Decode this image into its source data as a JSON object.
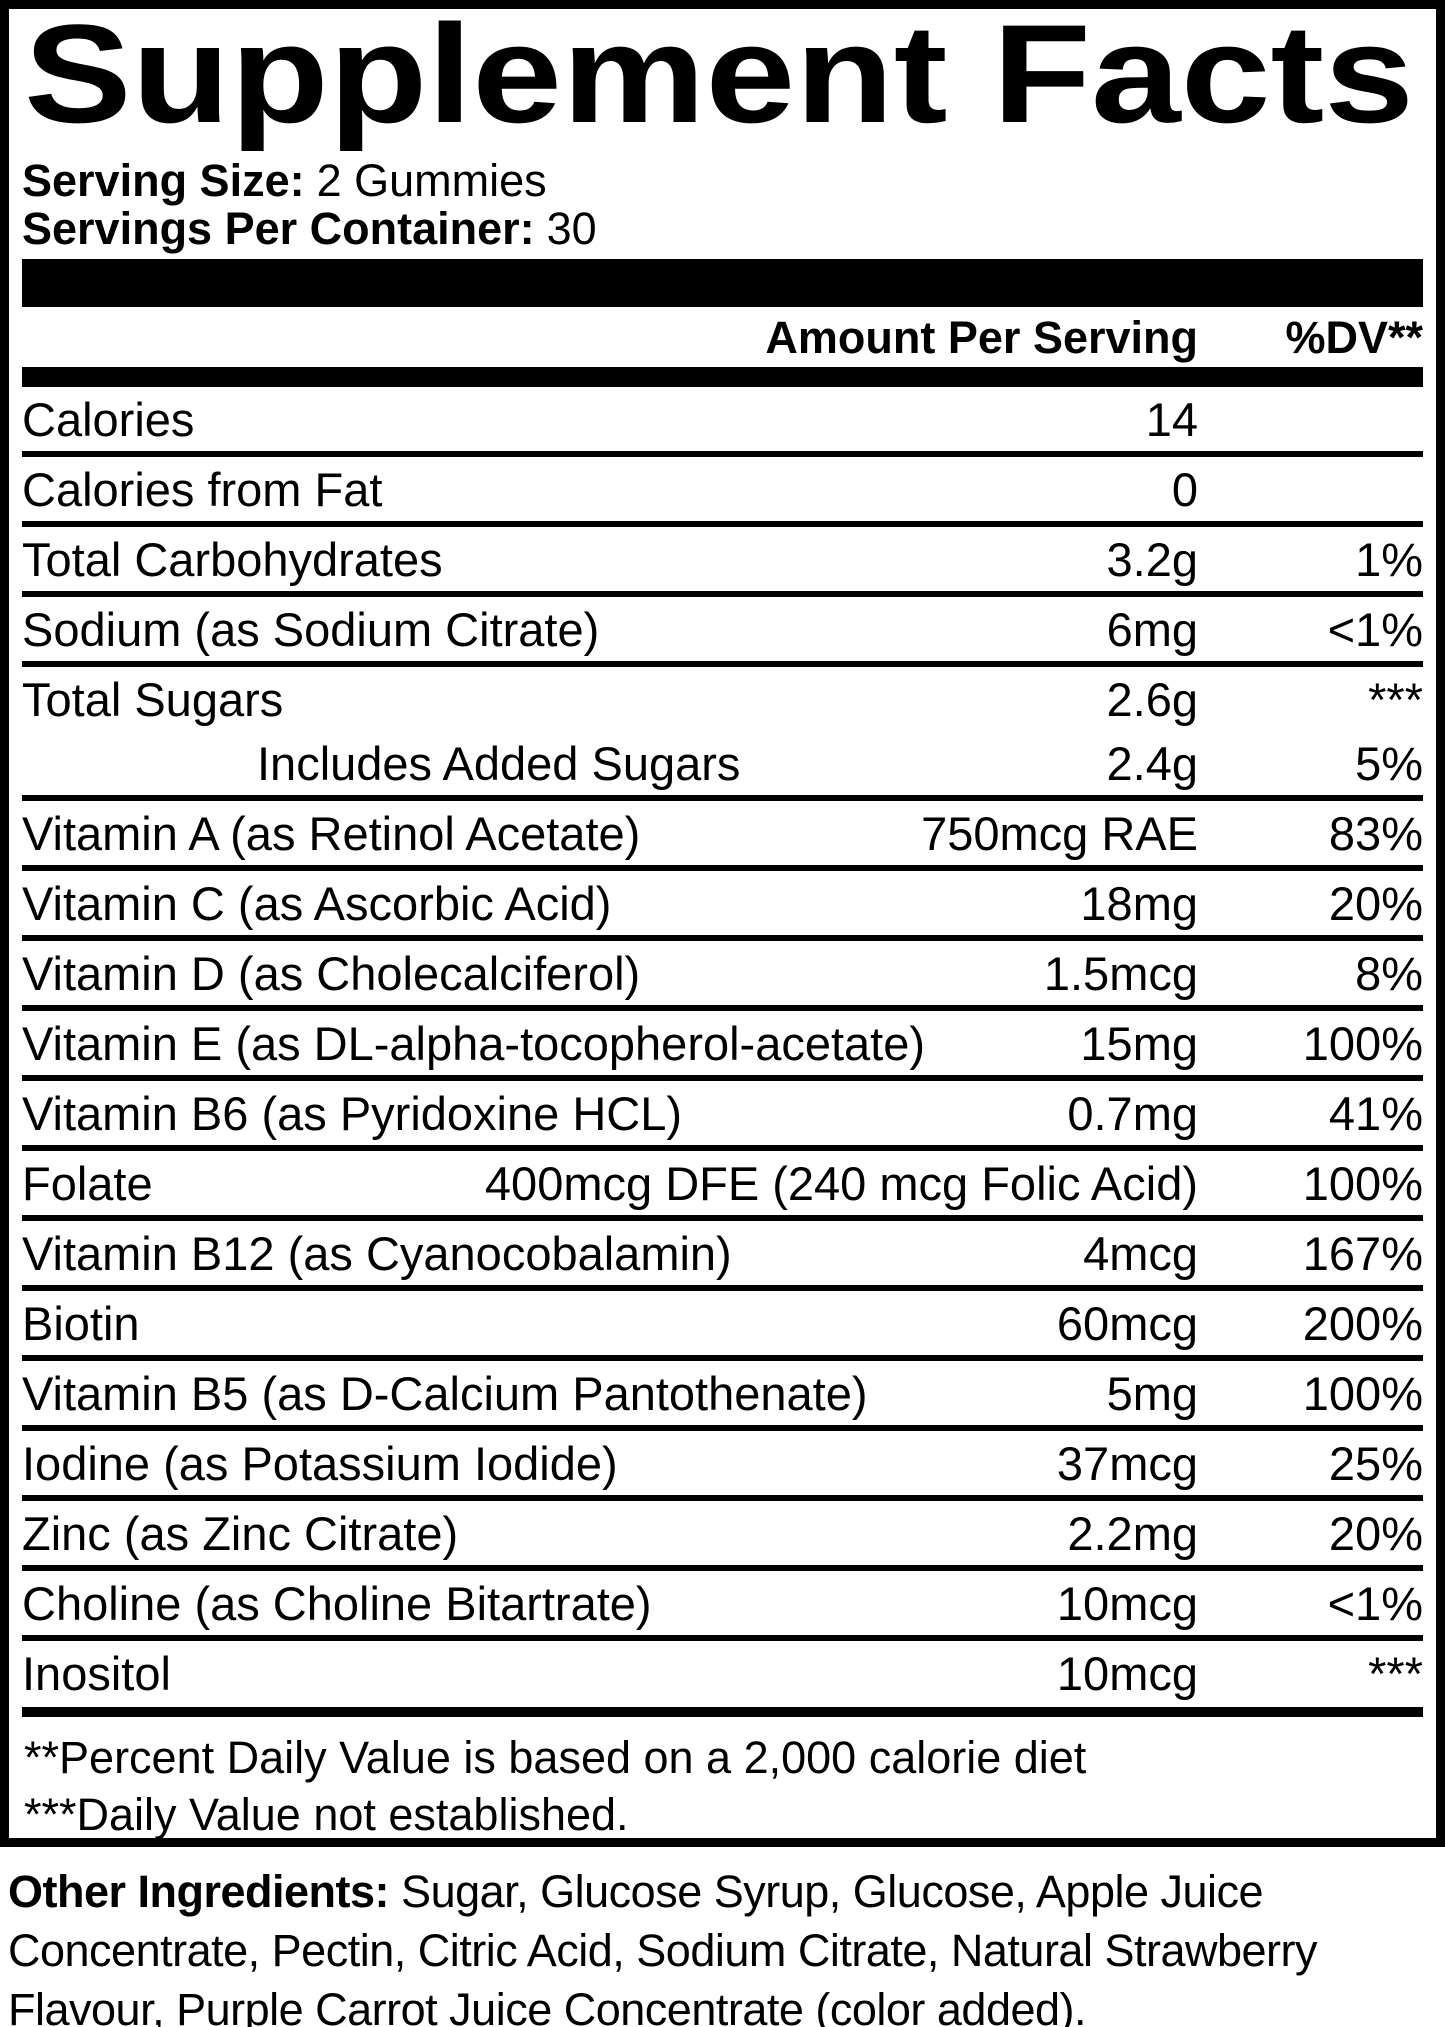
{
  "title": "Supplement Facts",
  "colors": {
    "text": "#000000",
    "background": "#ffffff"
  },
  "serving_info": {
    "serving_size_label": "Serving Size:",
    "serving_size_value": "2 Gummies",
    "servings_per_container_label": "Servings Per Container:",
    "servings_per_container_value": "30"
  },
  "table": {
    "amount_header": "Amount Per Serving",
    "dv_header": "%DV**",
    "rows": [
      {
        "name": "Calories",
        "amount": "14",
        "dv": ""
      },
      {
        "name": "Calories from Fat",
        "amount": "0",
        "dv": ""
      },
      {
        "name": "Total Carbohydrates",
        "amount": "3.2g",
        "dv": "1%"
      },
      {
        "name": "Sodium (as Sodium Citrate)",
        "amount": "6mg",
        "dv": "<1%"
      },
      {
        "name": "Total Sugars",
        "amount": "2.6g",
        "dv": "***"
      },
      {
        "name": "Includes Added Sugars",
        "amount": "2.4g",
        "dv": "5%"
      },
      {
        "name": "Vitamin A (as Retinol Acetate)",
        "amount": "750mcg RAE",
        "dv": "83%"
      },
      {
        "name": "Vitamin C (as Ascorbic Acid)",
        "amount": "18mg",
        "dv": "20%"
      },
      {
        "name": "Vitamin D (as Cholecalciferol)",
        "amount": "1.5mcg",
        "dv": "8%"
      },
      {
        "name": "Vitamin E (as DL-alpha-tocopherol-acetate)",
        "amount": "15mg",
        "dv": "100%"
      },
      {
        "name": "Vitamin B6 (as Pyridoxine HCL)",
        "amount": "0.7mg",
        "dv": "41%"
      },
      {
        "name": "Folate",
        "amount": "400mcg DFE (240 mcg Folic Acid)",
        "dv": "100%"
      },
      {
        "name": "Vitamin B12 (as Cyanocobalamin)",
        "amount": "4mcg",
        "dv": "167%"
      },
      {
        "name": "Biotin",
        "amount": "60mcg",
        "dv": "200%"
      },
      {
        "name": "Vitamin B5 (as D-Calcium Pantothenate)",
        "amount": "5mg",
        "dv": "100%"
      },
      {
        "name": "Iodine (as Potassium Iodide)",
        "amount": "37mcg",
        "dv": "25%"
      },
      {
        "name": "Zinc (as Zinc Citrate)",
        "amount": "2.2mg",
        "dv": "20%"
      },
      {
        "name": "Choline (as Choline Bitartrate)",
        "amount": "10mcg",
        "dv": "<1%"
      },
      {
        "name": "Inositol",
        "amount": "10mcg",
        "dv": "***"
      }
    ]
  },
  "footnotes": {
    "line1": "**Percent Daily Value is based on a 2,000 calorie diet",
    "line2": "***Daily Value not established."
  },
  "other_ingredients": {
    "label": "Other Ingredients:",
    "line1_rest": " Sugar, Glucose Syrup, Glucose, Apple Juice",
    "line2": "Concentrate, Pectin, Citric Acid, Sodium Citrate, Natural Strawberry",
    "line3": "Flavour, Purple Carrot Juice Concentrate (color added)."
  }
}
